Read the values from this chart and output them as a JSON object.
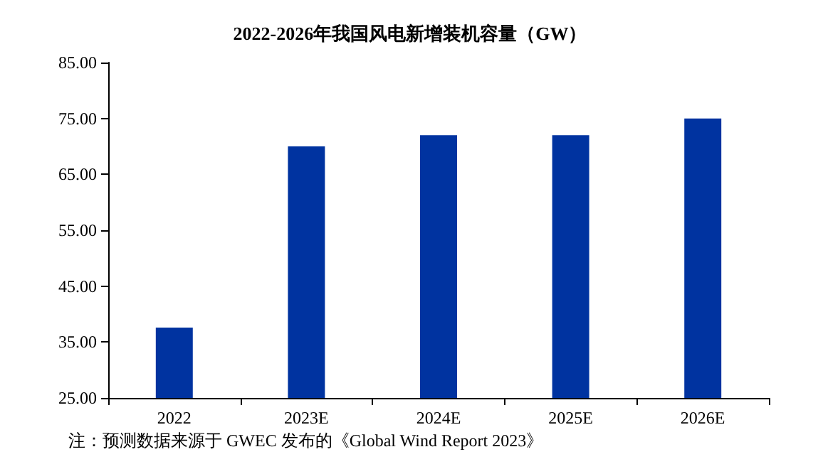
{
  "chart_data": {
    "type": "bar",
    "title": "2022-2026年我国风电新增装机容量（GW）",
    "categories": [
      "2022",
      "2023E",
      "2024E",
      "2025E",
      "2026E"
    ],
    "values": [
      37.6,
      70,
      72,
      72,
      75
    ],
    "color": "#0033a0",
    "ylim": [
      25,
      85
    ],
    "yticks": [
      {
        "value": 25,
        "label": "25.00"
      },
      {
        "value": 35,
        "label": "35.00"
      },
      {
        "value": 45,
        "label": "45.00"
      },
      {
        "value": 55,
        "label": "55.00"
      },
      {
        "value": 65,
        "label": "65.00"
      },
      {
        "value": 75,
        "label": "75.00"
      },
      {
        "value": 85,
        "label": "85.00"
      }
    ],
    "grid": false,
    "annotations": [
      "注：预测数据来源于 GWEC 发布的《Global Wind Report 2023》"
    ]
  }
}
